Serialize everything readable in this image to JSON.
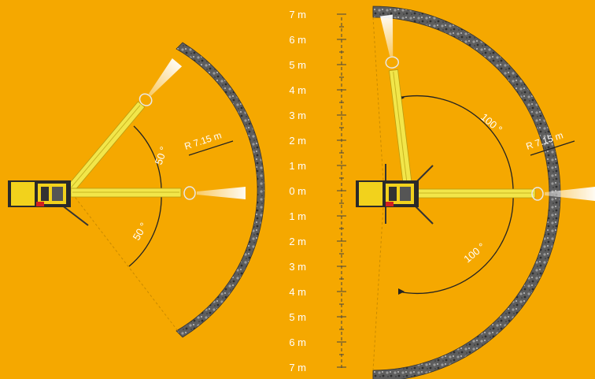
{
  "colors": {
    "background": "#F5A800",
    "boom": "#F2E64A",
    "boom_edge": "#B89C12",
    "rock": "#6E6E6E",
    "rock_dark": "#3F3F3F",
    "machine_dark": "#2A2A2A",
    "marker_red": "#D32020",
    "text": "#FFFFFF"
  },
  "left_view": {
    "angle_upper": "50 °",
    "angle_lower": "50 °",
    "radius": "R 7.15 m"
  },
  "right_view": {
    "angle_upper": "100 °",
    "angle_lower": "100 °",
    "radius": "R 7.15 m"
  },
  "scale": {
    "labels": [
      "7 m",
      "6 m",
      "5 m",
      "4 m",
      "3 m",
      "2 m",
      "1 m",
      "0 m",
      "1 m",
      "2 m",
      "3 m",
      "4 m",
      "5 m",
      "6 m",
      "7 m"
    ]
  }
}
